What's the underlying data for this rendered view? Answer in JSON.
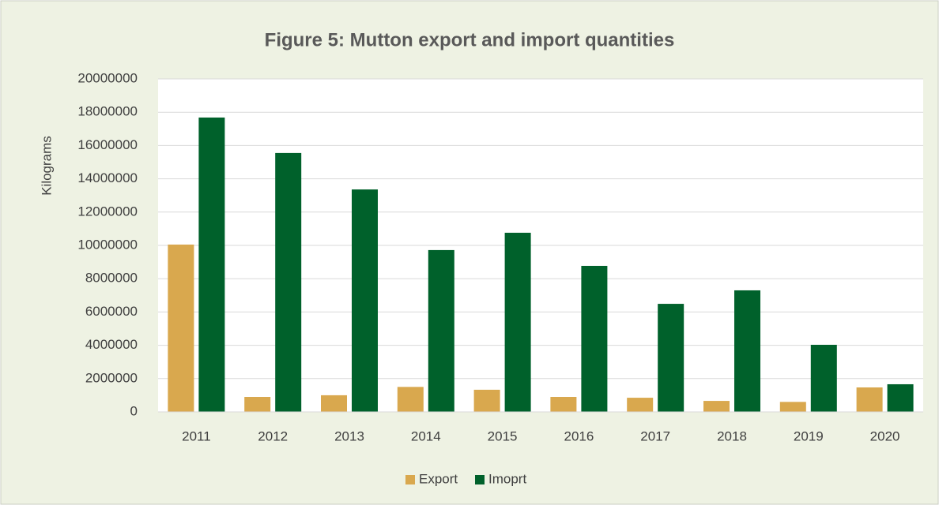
{
  "chart_data": {
    "type": "bar",
    "title": "Figure 5: Mutton export and import quantities",
    "ylabel": "Kilograms",
    "categories": [
      "2011",
      "2012",
      "2013",
      "2014",
      "2015",
      "2016",
      "2017",
      "2018",
      "2019",
      "2020"
    ],
    "series": [
      {
        "name": "Export",
        "color": "#d9a84e",
        "values": [
          10050000,
          900000,
          1000000,
          1500000,
          1330000,
          900000,
          850000,
          660000,
          600000,
          1470000
        ]
      },
      {
        "name": "Imoprt",
        "color": "#00612b",
        "values": [
          17680000,
          15550000,
          13360000,
          9720000,
          10760000,
          8770000,
          6490000,
          7300000,
          4030000,
          1660000
        ]
      }
    ],
    "ylim": [
      0,
      20000000
    ],
    "yticks": [
      0,
      2000000,
      4000000,
      6000000,
      8000000,
      10000000,
      12000000,
      14000000,
      16000000,
      18000000,
      20000000
    ],
    "grid": true,
    "legend": "bottom"
  }
}
